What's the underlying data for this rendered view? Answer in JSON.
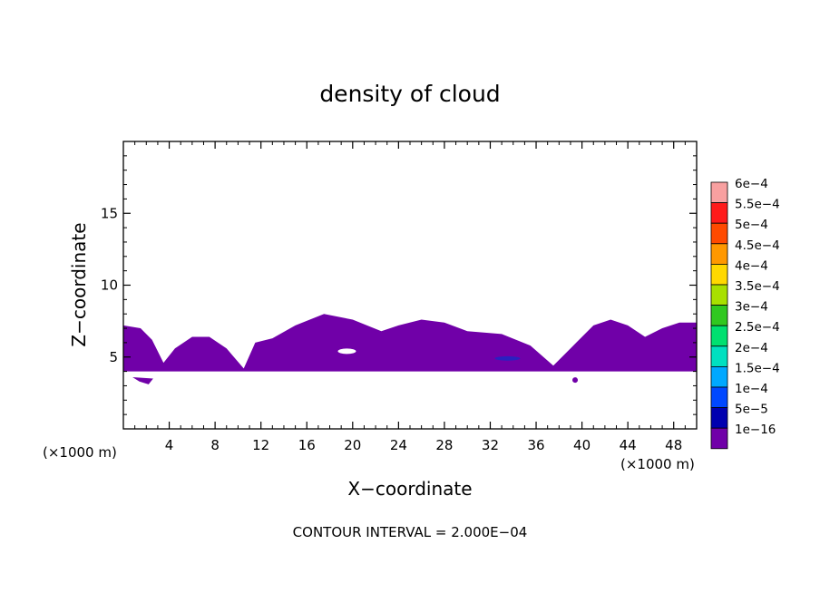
{
  "chart_data": {
    "type": "contour",
    "title": "density of cloud",
    "xlabel": "X−coordinate",
    "ylabel": "Z−coordinate",
    "x_unit": "(×1000 m)",
    "y_unit": "(×1000 m)",
    "xlim": [
      0,
      50
    ],
    "ylim": [
      0,
      20
    ],
    "x_ticks": [
      4,
      8,
      12,
      16,
      20,
      24,
      28,
      32,
      36,
      40,
      44,
      48
    ],
    "y_ticks": [
      5,
      10,
      15
    ],
    "x_tick_labels": [
      "4",
      "8",
      "12",
      "16",
      "20",
      "24",
      "28",
      "32",
      "36",
      "40",
      "44",
      "48"
    ],
    "y_tick_labels": [
      "5",
      "10",
      "15"
    ],
    "contour_interval_text": "CONTOUR INTERVAL = 2.000E−04",
    "legend": {
      "placement": "right",
      "levels": [
        {
          "label": "6e−4",
          "color": "#f8a0a0"
        },
        {
          "label": "5.5e−4",
          "color": "#ff1a1a"
        },
        {
          "label": "5e−4",
          "color": "#ff4a00"
        },
        {
          "label": "4.5e−4",
          "color": "#ff9800"
        },
        {
          "label": "4e−4",
          "color": "#ffd800"
        },
        {
          "label": "3.5e−4",
          "color": "#a8e000"
        },
        {
          "label": "3e−4",
          "color": "#30c820"
        },
        {
          "label": "2.5e−4",
          "color": "#00e070"
        },
        {
          "label": "2e−4",
          "color": "#00e0c0"
        },
        {
          "label": "1.5e−4",
          "color": "#00a8ff"
        },
        {
          "label": "1e−4",
          "color": "#0048ff"
        },
        {
          "label": "5e−5",
          "color": "#0000b0"
        },
        {
          "label": "1e−16",
          "color": "#7000a8"
        }
      ]
    },
    "cloud_layer": {
      "color": "#7000a8",
      "base_z": 4.0,
      "top_profile": [
        [
          0,
          7.2
        ],
        [
          1.5,
          7.0
        ],
        [
          2.5,
          6.2
        ],
        [
          3.5,
          4.6
        ],
        [
          4.5,
          5.6
        ],
        [
          6,
          6.4
        ],
        [
          7.5,
          6.4
        ],
        [
          9,
          5.6
        ],
        [
          10.5,
          4.2
        ],
        [
          11.5,
          6.0
        ],
        [
          13,
          6.3
        ],
        [
          15,
          7.2
        ],
        [
          17.5,
          8.0
        ],
        [
          20,
          7.6
        ],
        [
          22.5,
          6.8
        ],
        [
          24,
          7.2
        ],
        [
          26,
          7.6
        ],
        [
          28,
          7.4
        ],
        [
          30,
          6.8
        ],
        [
          33,
          6.6
        ],
        [
          35.5,
          5.8
        ],
        [
          37.5,
          4.4
        ],
        [
          39,
          5.6
        ],
        [
          41,
          7.2
        ],
        [
          42.5,
          7.6
        ],
        [
          44,
          7.2
        ],
        [
          45.5,
          6.4
        ],
        [
          47,
          7.0
        ],
        [
          48.5,
          7.4
        ],
        [
          50,
          7.4
        ]
      ]
    }
  }
}
